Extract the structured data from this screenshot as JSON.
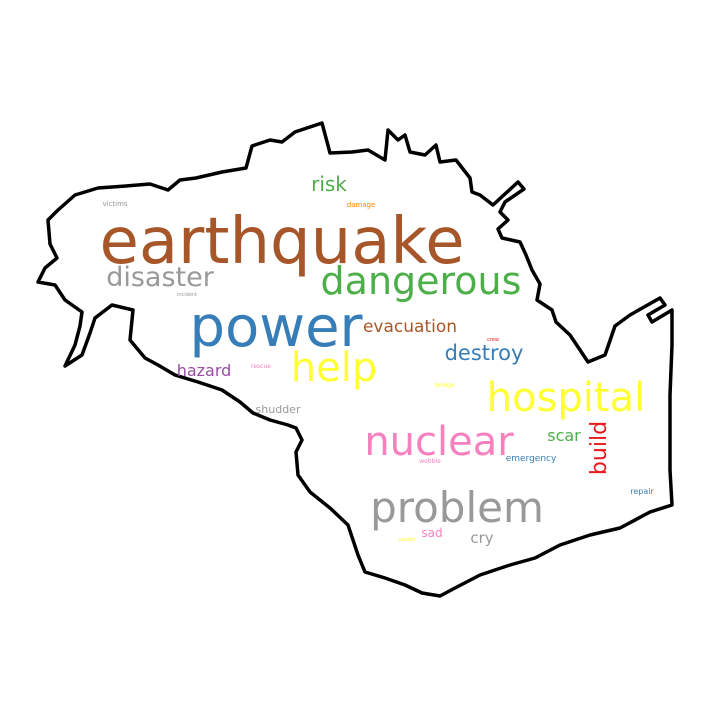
{
  "wordcloud": {
    "words": [
      {
        "text": "earthquake",
        "color": "#a65628"
      },
      {
        "text": "power",
        "color": "#377eb8"
      },
      {
        "text": "dangerous",
        "color": "#4daf4a"
      },
      {
        "text": "disaster",
        "color": "#999999"
      },
      {
        "text": "help",
        "color": "#ffff33"
      },
      {
        "text": "hospital",
        "color": "#ffff33"
      },
      {
        "text": "nuclear",
        "color": "#f781bf"
      },
      {
        "text": "problem",
        "color": "#999999"
      },
      {
        "text": "risk",
        "color": "#4daf4a"
      },
      {
        "text": "evacuation",
        "color": "#a65628"
      },
      {
        "text": "destroy",
        "color": "#377eb8"
      },
      {
        "text": "hazard",
        "color": "#984ea3"
      },
      {
        "text": "build",
        "color": "#e41a1c"
      },
      {
        "text": "scar",
        "color": "#4daf4a"
      },
      {
        "text": "shudder",
        "color": "#999999"
      },
      {
        "text": "cry",
        "color": "#999999"
      },
      {
        "text": "sad",
        "color": "#f781bf"
      },
      {
        "text": "emergency",
        "color": "#377eb8"
      },
      {
        "text": "repair",
        "color": "#377eb8"
      },
      {
        "text": "victims",
        "color": "#999999"
      },
      {
        "text": "damage",
        "color": "#ff7f00"
      },
      {
        "text": "incident",
        "color": "#999999"
      },
      {
        "text": "rescue",
        "color": "#f781bf"
      },
      {
        "text": "crew",
        "color": "#e41a1c"
      },
      {
        "text": "bridge",
        "color": "#ffff33"
      },
      {
        "text": "wobble",
        "color": "#f781bf"
      },
      {
        "text": "needle",
        "color": "#ffff33"
      }
    ]
  }
}
